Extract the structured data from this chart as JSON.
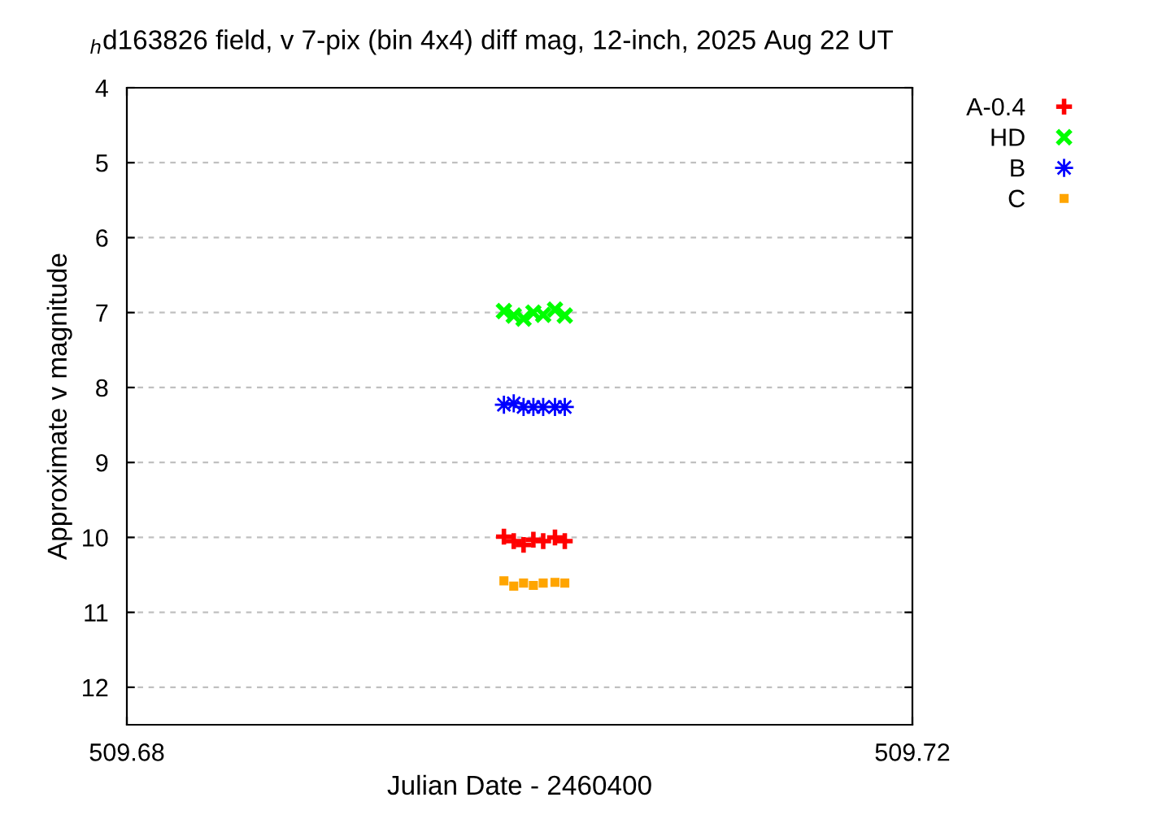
{
  "chart_data": {
    "type": "scatter",
    "title": "$_{h}$d163826 field, v 7-pix (bin 4x4) diff mag, 12-inch, 2025 Aug 22 UT",
    "xlabel": "Julian Date - 2460400",
    "ylabel": "Approximate v magnitude",
    "x": [
      509.6992,
      509.6997,
      509.7002,
      509.7007,
      509.7012,
      509.7018,
      509.7023
    ],
    "series": [
      {
        "name": "A-0.4",
        "color": "#ff0000",
        "marker": "plus",
        "values": [
          9.99,
          10.05,
          10.1,
          10.03,
          10.05,
          10.0,
          10.05
        ]
      },
      {
        "name": "HD",
        "color": "#00ff00",
        "marker": "cross",
        "values": [
          6.98,
          7.04,
          7.08,
          7.0,
          7.03,
          6.96,
          7.04
        ]
      },
      {
        "name": "B",
        "color": "#0000ff",
        "marker": "star",
        "values": [
          8.23,
          8.21,
          8.26,
          8.26,
          8.26,
          8.26,
          8.26
        ]
      },
      {
        "name": "C",
        "color": "#ffa500",
        "marker": "square",
        "values": [
          10.58,
          10.65,
          10.61,
          10.64,
          10.61,
          10.6,
          10.61
        ]
      }
    ],
    "xlim": [
      509.68,
      509.72
    ],
    "xticks": [
      509.68,
      509.72
    ],
    "ylim": [
      12.5,
      4
    ],
    "yticks": [
      4,
      5,
      6,
      7,
      8,
      9,
      10,
      11,
      12
    ],
    "grid": "y",
    "legend": "top right"
  }
}
